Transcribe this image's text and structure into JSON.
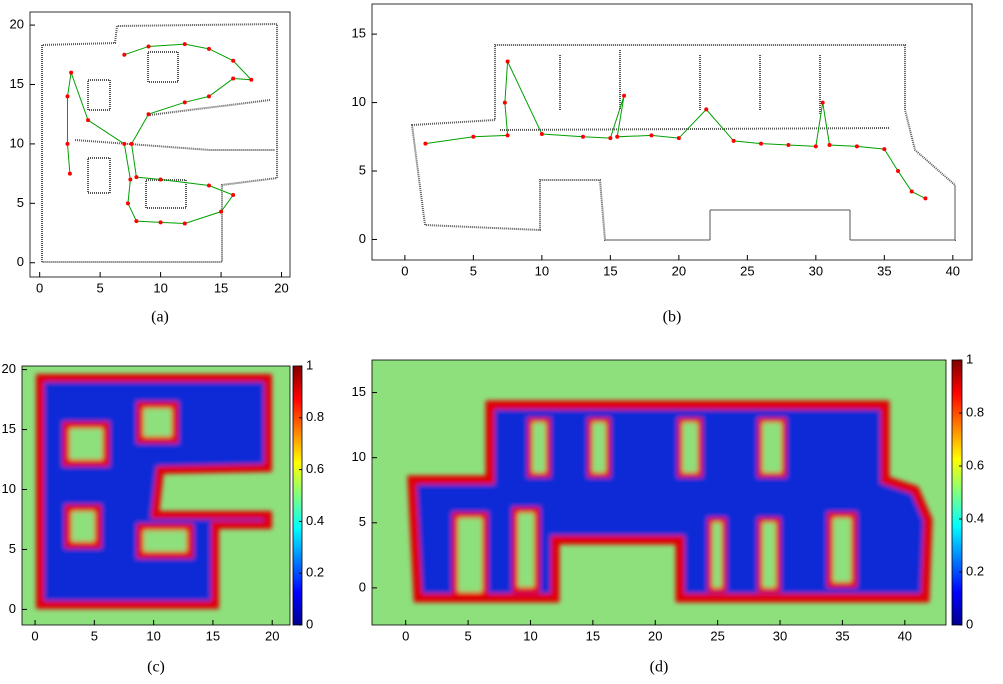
{
  "chart_data": [
    {
      "type": "scatter",
      "caption": "(a)",
      "x": [
        2.5,
        2.3,
        2.3,
        2.6,
        4,
        7,
        7.5,
        7.3,
        8,
        10,
        12,
        15,
        16,
        14,
        10,
        8,
        7.6,
        9,
        12,
        14,
        16,
        17.5,
        16,
        14,
        12,
        9,
        7
      ],
      "values": [
        7.5,
        10,
        14,
        16,
        12,
        10,
        7,
        5,
        3.5,
        3.4,
        3.3,
        4.3,
        5.7,
        6.5,
        7,
        7.2,
        10,
        12.5,
        13.5,
        14,
        15.5,
        15.4,
        17,
        18,
        18.4,
        18.2,
        17.5
      ],
      "color": "#ff0000",
      "line_color": "#00a000",
      "xlim": [
        -0.8,
        20.7
      ],
      "ylim": [
        -1.2,
        21.1
      ],
      "xticks": [
        0,
        5,
        10,
        15,
        20
      ],
      "yticks": [
        0,
        5,
        10,
        15,
        20
      ]
    },
    {
      "type": "scatter",
      "caption": "(b)",
      "x": [
        1.5,
        5,
        7.5,
        7.3,
        7.5,
        10,
        13,
        15,
        16,
        15.5,
        18,
        20,
        22,
        24,
        26,
        28,
        30,
        30.5,
        31,
        33,
        35,
        36,
        37,
        38
      ],
      "values": [
        7,
        7.5,
        7.6,
        10,
        13,
        7.7,
        7.5,
        7.4,
        10.5,
        7.5,
        7.6,
        7.4,
        9.5,
        7.2,
        7,
        6.9,
        6.8,
        10,
        6.9,
        6.8,
        6.6,
        5,
        3.5,
        3
      ],
      "color": "#ff0000",
      "line_color": "#00a000",
      "xlim": [
        -2.4,
        41.4
      ],
      "ylim": [
        -1.5,
        17.2
      ],
      "xticks": [
        0,
        5,
        10,
        15,
        20,
        25,
        30,
        35,
        40
      ],
      "yticks": [
        0,
        5,
        10,
        15
      ]
    },
    {
      "type": "heatmap",
      "caption": "(c)",
      "xlim": [
        -1.1,
        21.5
      ],
      "ylim": [
        -1.3,
        20.3
      ],
      "xticks": [
        0,
        5,
        10,
        15,
        20
      ],
      "yticks": [
        0,
        5,
        10,
        15,
        20
      ],
      "clim": [
        0,
        1
      ],
      "cticks": [
        0,
        0.2,
        0.4,
        0.6,
        0.8,
        1
      ]
    },
    {
      "type": "heatmap",
      "caption": "(d)",
      "xlim": [
        -2.7,
        43.3
      ],
      "ylim": [
        -2.85,
        17.5
      ],
      "xticks": [
        0,
        5,
        10,
        15,
        20,
        25,
        30,
        35,
        40
      ],
      "yticks": [
        0,
        5,
        10,
        15
      ],
      "clim": [
        0,
        1
      ],
      "cticks": [
        0,
        0.2,
        0.4,
        0.6,
        0.8,
        1
      ]
    }
  ]
}
